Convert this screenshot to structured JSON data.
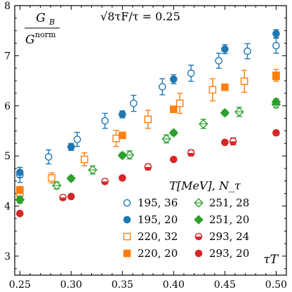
{
  "chart_data": {
    "type": "scatter",
    "ylabel_numerator": "G_B",
    "ylabel_denominator": "G^norm",
    "annotation": "√8τF/τ = 0.25",
    "xlabel": "τT",
    "legend_title": "T[MeV], N_τ",
    "xlim": [
      0.245,
      0.51
    ],
    "ylim": [
      2.62,
      8.0
    ],
    "xticks": [
      "0.25",
      "0.30",
      "0.35",
      "0.40",
      "0.45",
      "0.50"
    ],
    "yticks": [
      "3",
      "4",
      "5",
      "6",
      "7",
      "8"
    ],
    "series": [
      {
        "name": "195, 36",
        "color": "#1f77b4",
        "marker": "circle-open",
        "points": [
          [
            0.25,
            4.62,
            0.15
          ],
          [
            0.278,
            4.98,
            0.14
          ],
          [
            0.306,
            5.33,
            0.14
          ],
          [
            0.333,
            5.7,
            0.15
          ],
          [
            0.361,
            6.05,
            0.16
          ],
          [
            0.389,
            6.38,
            0.16
          ],
          [
            0.417,
            6.65,
            0.16
          ],
          [
            0.444,
            6.9,
            0.15
          ],
          [
            0.472,
            7.09,
            0.15
          ],
          [
            0.5,
            7.2,
            0.15
          ]
        ]
      },
      {
        "name": "195, 20",
        "color": "#1f77b4",
        "marker": "circle-filled",
        "points": [
          [
            0.25,
            4.67,
            0.1
          ],
          [
            0.3,
            5.18,
            0.07
          ],
          [
            0.35,
            5.83,
            0.07
          ],
          [
            0.4,
            6.53,
            0.09
          ],
          [
            0.45,
            7.13,
            0.09
          ],
          [
            0.5,
            7.44,
            0.08
          ]
        ]
      },
      {
        "name": "220, 32",
        "color": "#ff7f0e",
        "marker": "square-open",
        "points": [
          [
            0.25,
            4.26,
            0.08
          ],
          [
            0.281,
            4.56,
            0.1
          ],
          [
            0.313,
            4.93,
            0.13
          ],
          [
            0.344,
            5.35,
            0.16
          ],
          [
            0.375,
            5.73,
            0.18
          ],
          [
            0.406,
            6.05,
            0.2
          ],
          [
            0.438,
            6.32,
            0.22
          ],
          [
            0.469,
            6.49,
            0.22
          ],
          [
            0.5,
            6.61,
            0.12
          ]
        ]
      },
      {
        "name": "220, 20",
        "color": "#ff7f0e",
        "marker": "square-filled",
        "points": [
          [
            0.25,
            4.32,
            0.07
          ],
          [
            0.35,
            5.41,
            0.06
          ],
          [
            0.4,
            5.93,
            0.06
          ],
          [
            0.45,
            6.37,
            0.06
          ],
          [
            0.5,
            6.59,
            0.07
          ]
        ]
      },
      {
        "name": "251, 28",
        "color": "#2ca02c",
        "marker": "diamond-open",
        "points": [
          [
            0.25,
            4.12,
            0.06
          ],
          [
            0.286,
            4.41,
            0.07
          ],
          [
            0.321,
            4.72,
            0.08
          ],
          [
            0.357,
            5.02,
            0.08
          ],
          [
            0.393,
            5.34,
            0.08
          ],
          [
            0.429,
            5.64,
            0.09
          ],
          [
            0.464,
            5.88,
            0.09
          ],
          [
            0.5,
            6.03,
            0.07
          ]
        ]
      },
      {
        "name": "251, 20",
        "color": "#2ca02c",
        "marker": "diamond-filled",
        "points": [
          [
            0.25,
            4.13,
            0.06
          ],
          [
            0.3,
            4.55,
            0.05
          ],
          [
            0.35,
            5.01,
            0.05
          ],
          [
            0.4,
            5.46,
            0.05
          ],
          [
            0.45,
            5.86,
            0.05
          ],
          [
            0.5,
            6.08,
            0.06
          ]
        ]
      },
      {
        "name": "293, 24",
        "color": "#d62728",
        "marker": "circle-half",
        "points": [
          [
            0.292,
            4.17,
            0.05
          ],
          [
            0.333,
            4.49,
            0.05
          ],
          [
            0.375,
            4.78,
            0.06
          ],
          [
            0.417,
            5.06,
            0.06
          ],
          [
            0.458,
            5.29,
            0.07
          ]
        ]
      },
      {
        "name": "293, 20",
        "color": "#d62728",
        "marker": "circle-filled",
        "points": [
          [
            0.25,
            3.85,
            0.04
          ],
          [
            0.3,
            4.19,
            0.04
          ],
          [
            0.35,
            4.56,
            0.04
          ],
          [
            0.4,
            4.93,
            0.04
          ],
          [
            0.45,
            5.27,
            0.04
          ],
          [
            0.5,
            5.46,
            0.05
          ]
        ]
      }
    ]
  }
}
